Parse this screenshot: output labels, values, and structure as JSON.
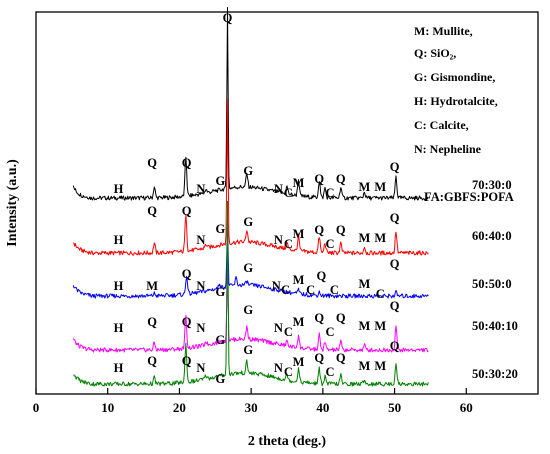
{
  "chart_data": {
    "type": "line",
    "xlabel": "2 theta (deg.)",
    "ylabel": "Intensity (a.u.)",
    "xlim": [
      0,
      70
    ],
    "xticks": [
      0,
      10,
      20,
      30,
      40,
      50,
      60
    ],
    "grid": false,
    "legend_title": "FA:GBFS:POFA",
    "phase_legend": [
      "M: Mullite,",
      "Q: SiO₂,",
      "G: Gismondine,",
      "H: Hydrotalcite,",
      "C: Calcite,",
      "N: Nepheline"
    ],
    "series": [
      {
        "name": "70:30:0",
        "color": "#000000",
        "peaks": [
          [
            16.5,
            0.9
          ],
          [
            20.9,
            3.2
          ],
          [
            23.7,
            0.3
          ],
          [
            26.7,
            14.8
          ],
          [
            29.4,
            1.1
          ],
          [
            35.0,
            0.6
          ],
          [
            36.6,
            1.3
          ],
          [
            39.5,
            1.4
          ],
          [
            40.3,
            0.8
          ],
          [
            42.5,
            0.9
          ],
          [
            45.8,
            0.5
          ],
          [
            50.2,
            1.8
          ]
        ]
      },
      {
        "name": "60:40:0",
        "color": "#ff0000",
        "peaks": [
          [
            16.5,
            0.8
          ],
          [
            20.9,
            3.1
          ],
          [
            23.7,
            0.3
          ],
          [
            26.7,
            11.8
          ],
          [
            29.4,
            1.0
          ],
          [
            35.0,
            0.5
          ],
          [
            36.6,
            1.2
          ],
          [
            39.5,
            1.3
          ],
          [
            40.3,
            0.8
          ],
          [
            42.5,
            0.8
          ],
          [
            45.8,
            0.5
          ],
          [
            50.2,
            1.8
          ]
        ]
      },
      {
        "name": "50:50:0",
        "color": "#0000ff",
        "peaks": [
          [
            16.5,
            0.2
          ],
          [
            21.0,
            1.6
          ],
          [
            25.6,
            0.4
          ],
          [
            26.7,
            5.3
          ],
          [
            27.9,
            0.6
          ],
          [
            29.4,
            0.3
          ],
          [
            36.6,
            0.3
          ],
          [
            39.5,
            0.3
          ],
          [
            50.2,
            0.3
          ]
        ]
      },
      {
        "name": "50:40:10",
        "color": "#ff00ff",
        "peaks": [
          [
            16.5,
            0.6
          ],
          [
            20.9,
            2.6
          ],
          [
            23.7,
            0.3
          ],
          [
            26.7,
            5.9
          ],
          [
            29.4,
            1.0
          ],
          [
            35.0,
            0.4
          ],
          [
            36.6,
            1.0
          ],
          [
            39.5,
            1.2
          ],
          [
            40.3,
            0.6
          ],
          [
            42.5,
            0.7
          ],
          [
            45.8,
            0.4
          ],
          [
            50.2,
            2.0
          ]
        ]
      },
      {
        "name": "50:30:20",
        "color": "#008000",
        "peaks": [
          [
            16.5,
            0.5
          ],
          [
            20.9,
            3.1
          ],
          [
            23.7,
            0.3
          ],
          [
            26.7,
            14.0
          ],
          [
            29.4,
            0.9
          ],
          [
            35.0,
            0.5
          ],
          [
            36.6,
            1.1
          ],
          [
            39.5,
            1.2
          ],
          [
            40.3,
            0.6
          ],
          [
            42.5,
            0.7
          ],
          [
            45.8,
            0.4
          ],
          [
            50.2,
            1.8
          ]
        ]
      }
    ],
    "peak_annotations": [
      [
        [
          "H",
          11.5
        ],
        [
          "Q",
          16.2
        ],
        [
          "Q",
          21.0
        ],
        [
          "N",
          23.0
        ],
        [
          "G",
          25.7
        ],
        [
          "Q",
          26.7
        ],
        [
          "G",
          29.6
        ],
        [
          "N",
          33.8
        ],
        [
          "C",
          35.2
        ],
        [
          "M",
          36.6
        ],
        [
          "Q",
          39.5
        ],
        [
          "C",
          41.0
        ],
        [
          "Q",
          42.5
        ],
        [
          "M",
          45.8
        ],
        [
          "M",
          48.0
        ],
        [
          "Q",
          50.0
        ]
      ],
      [
        [
          "H",
          11.5
        ],
        [
          "Q",
          16.2
        ],
        [
          "Q",
          21.0
        ],
        [
          "N",
          23.0
        ],
        [
          "G",
          25.7
        ],
        [
          "G",
          29.6
        ],
        [
          "N",
          33.8
        ],
        [
          "C",
          35.2
        ],
        [
          "M",
          36.6
        ],
        [
          "Q",
          39.5
        ],
        [
          "C",
          41.0
        ],
        [
          "Q",
          42.5
        ],
        [
          "M",
          45.8
        ],
        [
          "M",
          48.0
        ],
        [
          "Q",
          50.0
        ]
      ],
      [
        [
          "H",
          11.5
        ],
        [
          "M",
          16.2
        ],
        [
          "Q",
          21.0
        ],
        [
          "N",
          23.0
        ],
        [
          "G",
          25.7
        ],
        [
          "G",
          29.6
        ],
        [
          "N",
          33.5
        ],
        [
          "C",
          34.8
        ],
        [
          "M",
          36.6
        ],
        [
          "C",
          38.3
        ],
        [
          "Q",
          39.8
        ],
        [
          "C",
          41.6
        ],
        [
          "M",
          45.8
        ],
        [
          "C",
          48.0
        ],
        [
          "Q",
          50.0
        ]
      ],
      [
        [
          "H",
          11.5
        ],
        [
          "Q",
          16.2
        ],
        [
          "Q",
          21.0
        ],
        [
          "N",
          23.0
        ],
        [
          "G",
          25.7
        ],
        [
          "G",
          29.6
        ],
        [
          "N",
          33.8
        ],
        [
          "C",
          35.2
        ],
        [
          "M",
          36.6
        ],
        [
          "Q",
          39.5
        ],
        [
          "C",
          41.0
        ],
        [
          "Q",
          42.5
        ],
        [
          "M",
          45.8
        ],
        [
          "M",
          48.0
        ],
        [
          "Q",
          50.0
        ]
      ],
      [
        [
          "H",
          11.5
        ],
        [
          "Q",
          16.2
        ],
        [
          "Q",
          21.0
        ],
        [
          "N",
          23.0
        ],
        [
          "G",
          25.7
        ],
        [
          "G",
          29.6
        ],
        [
          "N",
          33.8
        ],
        [
          "C",
          35.2
        ],
        [
          "M",
          36.6
        ],
        [
          "Q",
          39.5
        ],
        [
          "C",
          41.0
        ],
        [
          "Q",
          42.5
        ],
        [
          "M",
          45.8
        ],
        [
          "M",
          48.0
        ],
        [
          "Q",
          50.0
        ]
      ]
    ]
  }
}
